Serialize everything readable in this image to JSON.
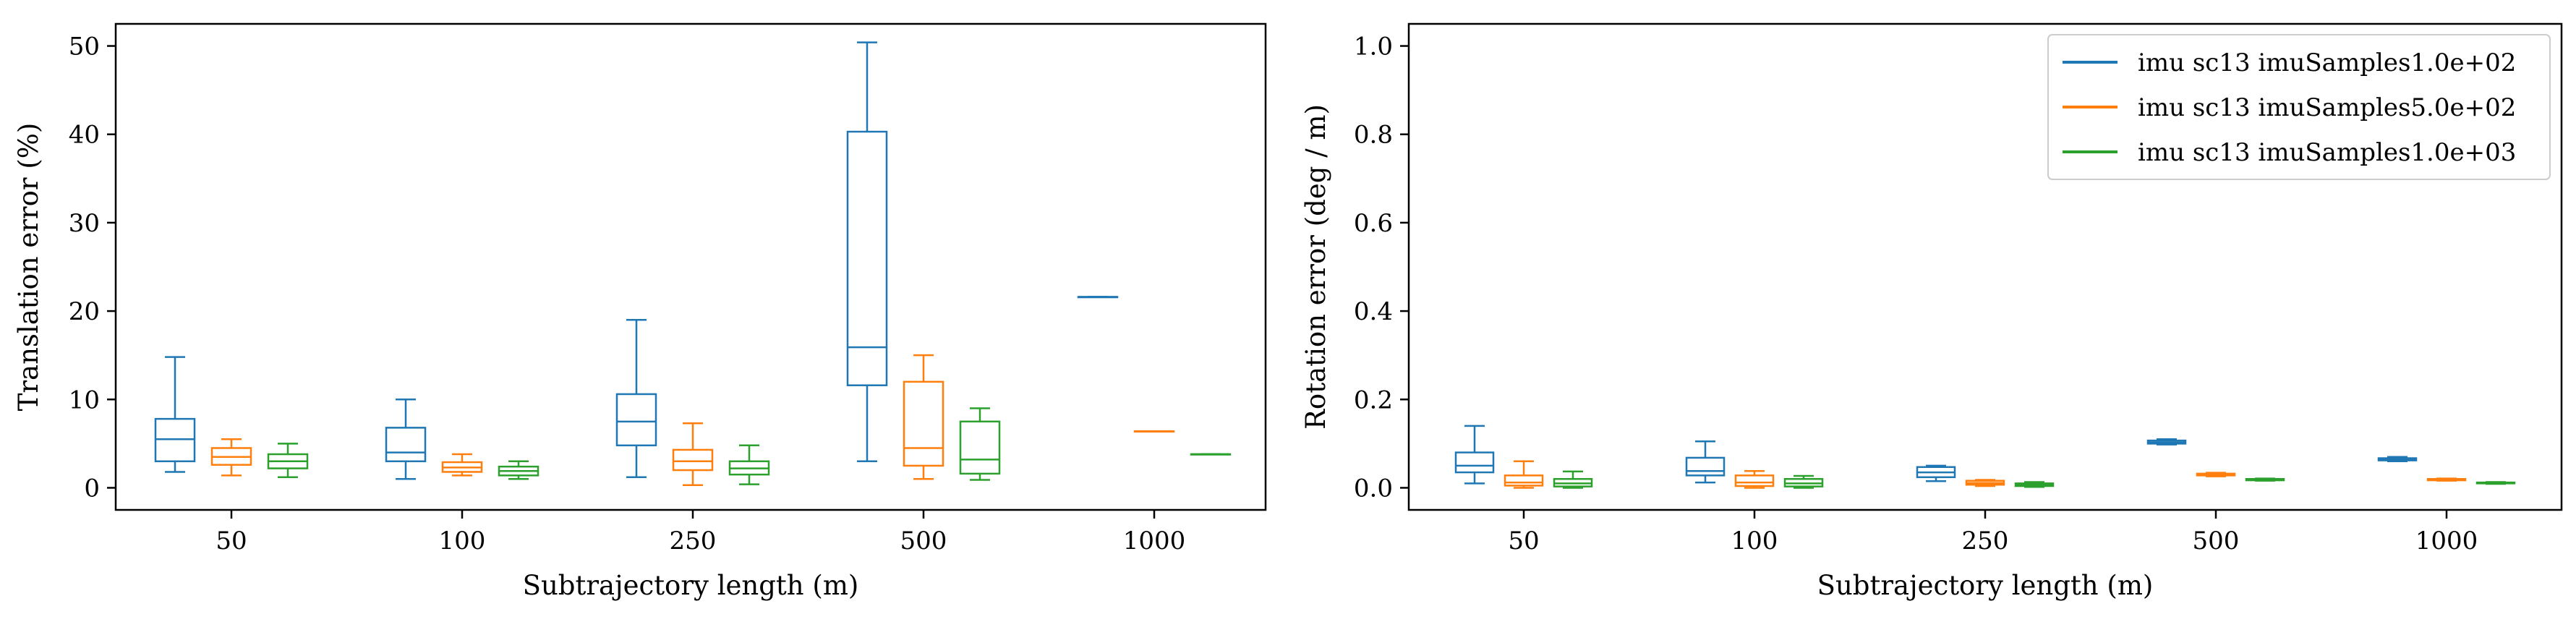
{
  "colors": {
    "series": [
      "#1f77b4",
      "#ff7f0e",
      "#2ca02c"
    ],
    "axes": "#000000",
    "background": "#ffffff"
  },
  "chart_data": [
    {
      "type": "box",
      "categories": [
        "50",
        "100",
        "250",
        "500",
        "1000"
      ],
      "xlabel": "Subtrajectory length (m)",
      "ylabel": "Translation error (%)",
      "ylim": [
        -2.5,
        52.5
      ],
      "yticks": [
        0,
        10,
        20,
        30,
        40,
        50
      ],
      "grid": false,
      "series": [
        {
          "name": "imu sc13 imuSamples1.0e+02",
          "boxes": [
            {
              "min": 1.8,
              "q1": 3.0,
              "median": 5.5,
              "q3": 7.8,
              "max": 14.8
            },
            {
              "min": 1.0,
              "q1": 3.0,
              "median": 4.0,
              "q3": 6.8,
              "max": 10.0
            },
            {
              "min": 1.2,
              "q1": 4.8,
              "median": 7.5,
              "q3": 10.6,
              "max": 19.0
            },
            {
              "min": 3.0,
              "q1": 11.6,
              "median": 15.9,
              "q3": 40.3,
              "max": 50.4
            },
            {
              "min": 21.6,
              "q1": 21.6,
              "median": 21.6,
              "q3": 21.6,
              "max": 21.6
            }
          ]
        },
        {
          "name": "imu sc13 imuSamples5.0e+02",
          "boxes": [
            {
              "min": 1.4,
              "q1": 2.6,
              "median": 3.5,
              "q3": 4.5,
              "max": 5.5
            },
            {
              "min": 1.4,
              "q1": 1.8,
              "median": 2.3,
              "q3": 2.9,
              "max": 3.8
            },
            {
              "min": 0.3,
              "q1": 2.0,
              "median": 3.0,
              "q3": 4.3,
              "max": 7.3
            },
            {
              "min": 1.0,
              "q1": 2.5,
              "median": 4.5,
              "q3": 12.0,
              "max": 15.0
            },
            {
              "min": 6.4,
              "q1": 6.4,
              "median": 6.4,
              "q3": 6.4,
              "max": 6.4
            }
          ]
        },
        {
          "name": "imu sc13 imuSamples1.0e+03",
          "boxes": [
            {
              "min": 1.2,
              "q1": 2.2,
              "median": 3.0,
              "q3": 3.8,
              "max": 5.0
            },
            {
              "min": 1.0,
              "q1": 1.4,
              "median": 1.9,
              "q3": 2.4,
              "max": 3.0
            },
            {
              "min": 0.4,
              "q1": 1.5,
              "median": 2.2,
              "q3": 3.0,
              "max": 4.8
            },
            {
              "min": 0.9,
              "q1": 1.6,
              "median": 3.2,
              "q3": 7.5,
              "max": 9.0
            },
            {
              "min": 3.8,
              "q1": 3.8,
              "median": 3.8,
              "q3": 3.8,
              "max": 3.8
            }
          ]
        }
      ]
    },
    {
      "type": "box",
      "categories": [
        "50",
        "100",
        "250",
        "500",
        "1000"
      ],
      "xlabel": "Subtrajectory length (m)",
      "ylabel": "Rotation error (deg / m)",
      "ylim": [
        -0.05,
        1.05
      ],
      "yticks": [
        0.0,
        0.2,
        0.4,
        0.6,
        0.8,
        1.0
      ],
      "ytick_labels": [
        "0.0",
        "0.2",
        "0.4",
        "0.6",
        "0.8",
        "1.0"
      ],
      "grid": false,
      "legend": "top-right",
      "series": [
        {
          "name": "imu sc13 imuSamples1.0e+02",
          "boxes": [
            {
              "min": 0.01,
              "q1": 0.035,
              "median": 0.05,
              "q3": 0.08,
              "max": 0.14
            },
            {
              "min": 0.012,
              "q1": 0.028,
              "median": 0.038,
              "q3": 0.068,
              "max": 0.105
            },
            {
              "min": 0.015,
              "q1": 0.024,
              "median": 0.035,
              "q3": 0.047,
              "max": 0.05
            },
            {
              "min": 0.098,
              "q1": 0.1,
              "median": 0.103,
              "q3": 0.107,
              "max": 0.11
            },
            {
              "min": 0.06,
              "q1": 0.062,
              "median": 0.064,
              "q3": 0.067,
              "max": 0.07
            }
          ]
        },
        {
          "name": "imu sc13 imuSamples5.0e+02",
          "boxes": [
            {
              "min": 0.0,
              "q1": 0.005,
              "median": 0.012,
              "q3": 0.028,
              "max": 0.06
            },
            {
              "min": 0.0,
              "q1": 0.004,
              "median": 0.012,
              "q3": 0.028,
              "max": 0.038
            },
            {
              "min": 0.004,
              "q1": 0.007,
              "median": 0.011,
              "q3": 0.016,
              "max": 0.018
            },
            {
              "min": 0.026,
              "q1": 0.028,
              "median": 0.03,
              "q3": 0.032,
              "max": 0.034
            },
            {
              "min": 0.016,
              "q1": 0.017,
              "median": 0.018,
              "q3": 0.02,
              "max": 0.021
            }
          ]
        },
        {
          "name": "imu sc13 imuSamples1.0e+03",
          "boxes": [
            {
              "min": 0.0,
              "q1": 0.003,
              "median": 0.01,
              "q3": 0.02,
              "max": 0.037
            },
            {
              "min": 0.0,
              "q1": 0.003,
              "median": 0.01,
              "q3": 0.02,
              "max": 0.027
            },
            {
              "min": 0.002,
              "q1": 0.004,
              "median": 0.007,
              "q3": 0.01,
              "max": 0.013
            },
            {
              "min": 0.016,
              "q1": 0.017,
              "median": 0.019,
              "q3": 0.02,
              "max": 0.021
            },
            {
              "min": 0.009,
              "q1": 0.01,
              "median": 0.011,
              "q3": 0.012,
              "max": 0.013
            }
          ]
        }
      ]
    }
  ]
}
